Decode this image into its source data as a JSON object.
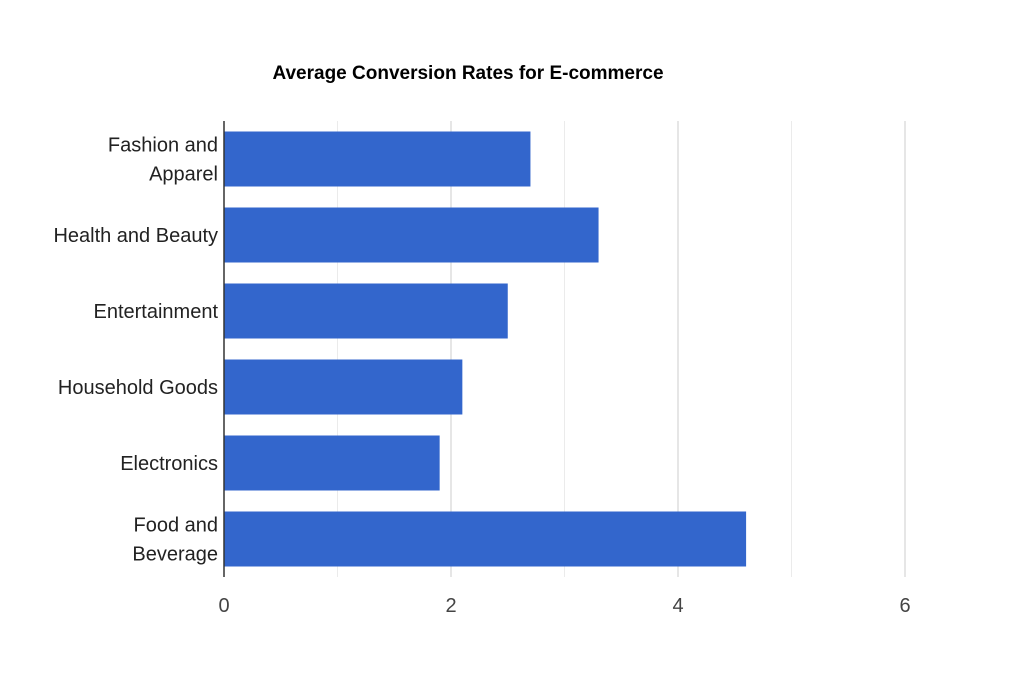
{
  "chart_data": {
    "type": "bar",
    "orientation": "horizontal",
    "title": "Average Conversion Rates for E-commerce",
    "xlabel": "",
    "ylabel": "",
    "categories": [
      [
        "Fashion and",
        "Apparel"
      ],
      [
        "Health and Beauty"
      ],
      [
        "Entertainment"
      ],
      [
        "Household Goods"
      ],
      [
        "Electronics"
      ],
      [
        "Food and",
        "Beverage"
      ]
    ],
    "values": [
      2.7,
      3.3,
      2.5,
      2.1,
      1.9,
      4.6
    ],
    "xlim": [
      0,
      6
    ],
    "xticks": [
      "0",
      "2",
      "4",
      "6"
    ],
    "grid": true,
    "bar_color": "#3366cc"
  }
}
